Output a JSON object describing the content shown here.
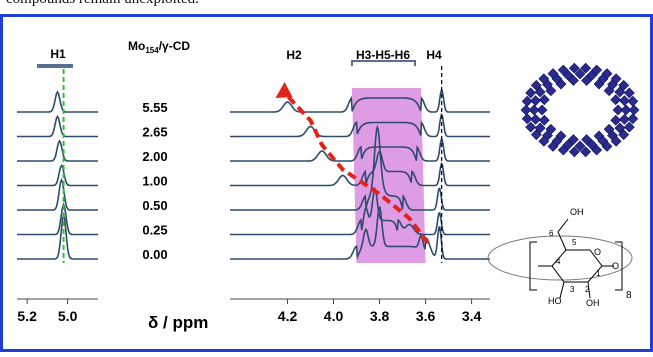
{
  "caption_fragment": "compounds remain unexploited.",
  "colors": {
    "frame": "#1f3fd6",
    "spectrum": "#2f4a6d",
    "highlight": "#d88be0",
    "arrow": "#e2231a",
    "h1_guide": "#22cc22",
    "h4_guide": "#000000",
    "polyhedra": "#2b2b8f"
  },
  "icons": {
    "polyoxometalate": "polyhedral-ring-icon",
    "cyclodextrin": "gamma-cd-structure-icon"
  },
  "chart_data": {
    "type": "line",
    "title": "",
    "xlabel": "δ / ppm",
    "ylabel": "",
    "x_reversed": true,
    "ratio_header": "Mo154/γ-CD",
    "ratio_header_main": "Mo",
    "ratio_header_sub": "154",
    "ratio_header_tail": "/γ-CD",
    "ratios": [
      "5.55",
      "2.65",
      "2.00",
      "1.00",
      "0.50",
      "0.25",
      "0.00"
    ],
    "peak_labels": {
      "h1": "H1",
      "h2": "H2",
      "h3h5h6": "H3-H5-H6",
      "h4": "H4"
    },
    "left_panel": {
      "xlim": [
        5.25,
        4.85
      ],
      "ticks": [
        "5.2",
        "5.0"
      ],
      "tick_values": [
        5.2,
        5.0
      ]
    },
    "right_panel": {
      "xlim": [
        4.45,
        3.32
      ],
      "ticks": [
        "4.2",
        "4.0",
        "3.8",
        "3.6",
        "3.4"
      ],
      "tick_values": [
        4.2,
        4.0,
        3.8,
        3.6,
        3.4
      ]
    },
    "series": [
      {
        "ratio": "5.55",
        "h1_shift": 5.05,
        "h2_shift": 4.2,
        "h4_shift": 3.53,
        "envelope": [
          3.92,
          3.62
        ]
      },
      {
        "ratio": "2.65",
        "h1_shift": 5.05,
        "h2_shift": 4.1,
        "h4_shift": 3.53,
        "envelope": [
          3.9,
          3.62
        ]
      },
      {
        "ratio": "2.00",
        "h1_shift": 5.04,
        "h2_shift": 4.05,
        "h4_shift": 3.53,
        "envelope": [
          3.88,
          3.64
        ]
      },
      {
        "ratio": "1.00",
        "h1_shift": 5.03,
        "h2_shift": 3.96,
        "h4_shift": 3.53,
        "envelope": [
          3.86,
          3.66
        ]
      },
      {
        "ratio": "0.50",
        "h1_shift": 5.03,
        "h2_shift": 3.8,
        "h4_shift": 3.54,
        "envelope": [
          3.86,
          3.7
        ]
      },
      {
        "ratio": "0.25",
        "h1_shift": 5.02,
        "h2_shift": 3.67,
        "h4_shift": 3.54,
        "envelope": [
          3.88,
          3.72
        ]
      },
      {
        "ratio": "0.00",
        "h1_shift": 5.02,
        "h2_shift": 3.59,
        "h4_shift": 3.54,
        "envelope": [
          3.9,
          3.6
        ]
      }
    ],
    "guides": {
      "h1": 5.02,
      "h4": 3.53
    },
    "highlight_band": {
      "top": [
        3.92,
        3.62
      ],
      "bottom": [
        3.9,
        3.6
      ]
    },
    "structure_labels": {
      "n": "8",
      "oh": "OH",
      "ho_left": "HO",
      "oh_right": "OH",
      "o_ring": "O",
      "o_link": "O",
      "c6": "6",
      "c5": "5",
      "c4": "4",
      "c3": "3",
      "c2": "2",
      "c1": "1"
    }
  }
}
